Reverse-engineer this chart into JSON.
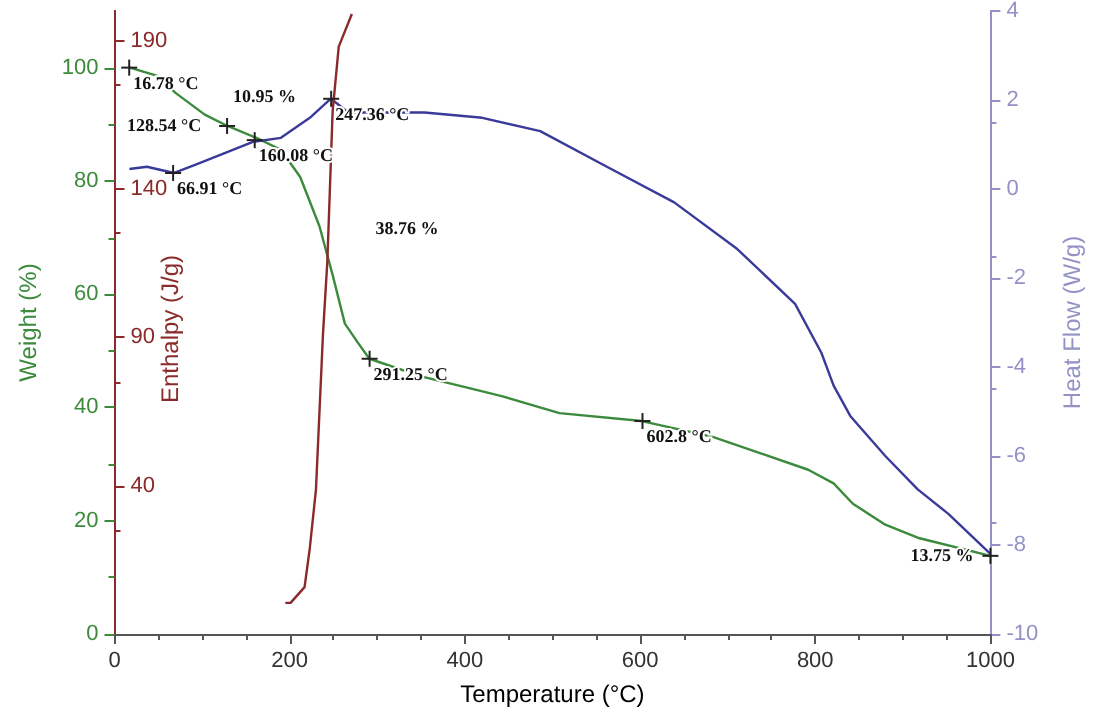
{
  "chart_data": {
    "type": "line",
    "xlabel": "Temperature (°C)",
    "ylabel": "Weight (%)",
    "y2label": "Heat Flow (W/g)",
    "y3label": "Enthalpy (J/g)",
    "xlim": [
      0,
      1000
    ],
    "xticks": [
      0,
      200,
      400,
      600,
      800,
      1000
    ],
    "ylim": [
      0,
      110
    ],
    "yticks": [
      0,
      20,
      40,
      60,
      80,
      100
    ],
    "y2lim": [
      -10,
      4
    ],
    "y2ticks": [
      -10,
      -8,
      -6,
      -4,
      -2,
      0,
      2,
      4
    ],
    "y3lim": [
      -10,
      200
    ],
    "y3ticks": [
      40,
      90,
      140,
      190
    ],
    "grid": false,
    "marker": "none",
    "line_style": "solid",
    "series": [
      {
        "color": "#3c8a3c",
        "x": [
          17.5,
          48,
          70,
          103,
          129,
          162,
          190,
          212,
          234,
          249,
          263,
          278,
          291,
          350,
          405,
          442,
          508,
          602,
          683,
          792,
          821,
          843,
          880,
          917,
          1000
        ],
        "values": [
          100,
          98.6,
          95.5,
          91.7,
          89.7,
          87.6,
          85.5,
          80.7,
          72,
          63.4,
          54.8,
          51.4,
          48.6,
          45.5,
          43.4,
          42,
          39,
          37.6,
          34.8,
          29,
          26.6,
          23,
          19.3,
          17,
          13.8
        ]
      },
      {
        "color": "#3a3a9a",
        "axis": "y2",
        "x": [
          17,
          37,
          68,
          92,
          125,
          158,
          190,
          223,
          247,
          267,
          289,
          354,
          420,
          486,
          567,
          639,
          711,
          777,
          807,
          821,
          840,
          880,
          917,
          952,
          1000
        ],
        "values": [
          0.45,
          0.5,
          0.36,
          0.54,
          0.8,
          1.06,
          1.15,
          1.6,
          2.03,
          1.72,
          1.72,
          1.72,
          1.6,
          1.3,
          0.45,
          -0.3,
          -1.35,
          -2.58,
          -3.68,
          -4.42,
          -5.1,
          -6,
          -6.75,
          -7.3,
          -8.2
        ]
      },
      {
        "color": "#8b2a2a",
        "axis": "y3",
        "x": [
          195,
          201,
          217,
          223,
          230,
          238,
          243,
          249,
          256,
          271
        ],
        "values": [
          0.5,
          0.5,
          5.8,
          19,
          38.7,
          91,
          115.6,
          166,
          188,
          199
        ]
      }
    ],
    "annotations": [
      {
        "text": "16.78 °C",
        "x": 16.78,
        "y": 100
      },
      "10.95 %",
      {
        "text": "128.54 °C",
        "x": 128.54,
        "y": 89.7
      },
      {
        "text": "160.08 °C",
        "x": 160.08,
        "y": 87.2
      },
      {
        "text": "66.91 °C",
        "x": 66.91,
        "y": 81.4
      },
      {
        "text": "247.36 °C",
        "x": 247.36,
        "y": 94.5
      },
      "38.76 %",
      {
        "text": "291.25 °C",
        "x": 291.25,
        "y": 48.6
      },
      {
        "text": "602.8 °C",
        "x": 602.8,
        "y": 37.6
      },
      {
        "text": "13.75 %",
        "x": 1000,
        "y": 13.8
      }
    ]
  }
}
